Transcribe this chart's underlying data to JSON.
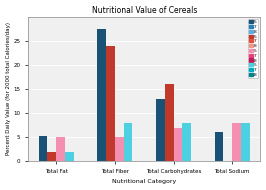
{
  "title": "Nutritional Value of Cereals",
  "xlabel": "Nutritional Category",
  "ylabel": "Percent Daily Value (for 2000 total Calories/day)",
  "categories": [
    "Total Fat",
    "Total Fiber",
    "Total Carbohydrates",
    "Total Sodium"
  ],
  "series": [
    {
      "label": "5",
      "color": "#1a5276",
      "values": [
        5.2,
        27.5,
        13.0,
        6.0
      ]
    },
    {
      "label": "7",
      "color": "#2980b9",
      "values": [
        0.0,
        0.0,
        0.0,
        0.0
      ]
    },
    {
      "label": "8",
      "color": "#5dade2",
      "values": [
        0.0,
        0.0,
        0.0,
        0.0
      ]
    },
    {
      "label": "5",
      "color": "#c0392b",
      "values": [
        2.0,
        24.0,
        16.0,
        0.0
      ]
    },
    {
      "label": "7",
      "color": "#e74c3c",
      "values": [
        0.0,
        0.0,
        0.0,
        0.0
      ]
    },
    {
      "label": "8",
      "color": "#f1948a",
      "values": [
        0.0,
        0.0,
        0.0,
        0.0
      ]
    },
    {
      "label": "5",
      "color": "#f48fb1",
      "values": [
        5.0,
        5.0,
        7.0,
        8.0
      ]
    },
    {
      "label": "7",
      "color": "#ec407a",
      "values": [
        0.0,
        0.0,
        0.0,
        0.0
      ]
    },
    {
      "label": "8",
      "color": "#c2185b",
      "values": [
        0.0,
        0.0,
        0.0,
        0.0
      ]
    },
    {
      "label": "5",
      "color": "#4dd0e1",
      "values": [
        2.0,
        8.0,
        8.0,
        8.0
      ]
    },
    {
      "label": "7",
      "color": "#00acc1",
      "values": [
        0.0,
        0.0,
        0.0,
        0.0
      ]
    },
    {
      "label": "8",
      "color": "#00838f",
      "values": [
        0.0,
        0.0,
        0.0,
        0.0
      ]
    }
  ],
  "active_series": [
    {
      "label": "5",
      "color": "#1a5276",
      "values": [
        5.2,
        27.5,
        13.0,
        6.0
      ]
    },
    {
      "label": "5",
      "color": "#c0392b",
      "values": [
        2.0,
        24.0,
        16.0,
        0.0
      ]
    },
    {
      "label": "5",
      "color": "#f48fb1",
      "values": [
        5.0,
        5.0,
        7.0,
        8.0
      ]
    },
    {
      "label": "5",
      "color": "#4dd0e1",
      "values": [
        2.0,
        8.0,
        8.0,
        8.0
      ]
    }
  ],
  "legend_colors": [
    "#1a5276",
    "#2980b9",
    "#5dade2",
    "#c0392b",
    "#e74c3c",
    "#f1948a",
    "#f48fb1",
    "#ec407a",
    "#c2185b",
    "#4dd0e1",
    "#00acc1",
    "#00838f"
  ],
  "legend_labels": [
    "5",
    "7",
    "8",
    "5",
    "7",
    "8",
    "5",
    "7",
    "8",
    "5",
    "7",
    "8"
  ],
  "ylim": [
    0,
    30
  ],
  "yticks": [
    0,
    5,
    10,
    15,
    20,
    25
  ],
  "background": "#f0f0f0",
  "title_fontsize": 5.5,
  "axis_label_fontsize": 4.5,
  "tick_fontsize": 4.0,
  "bar_width": 0.15
}
